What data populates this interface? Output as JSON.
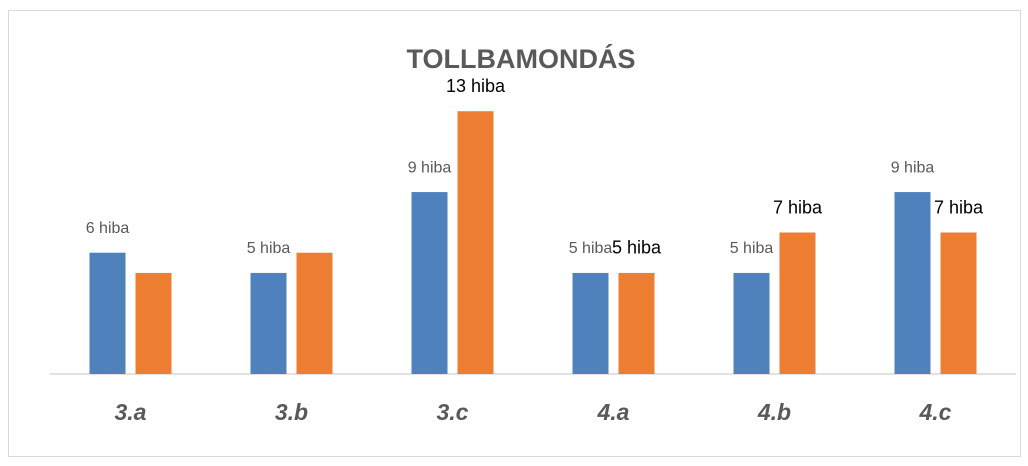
{
  "chart_data": {
    "type": "bar",
    "title": "TOLLBAMONDÁS",
    "categories": [
      "3.a",
      "3.b",
      "3.c",
      "4.a",
      "4.b",
      "4.c"
    ],
    "series": [
      {
        "color": "#4f81bd",
        "values": [
          6,
          5,
          9,
          5,
          5,
          9
        ],
        "value_labels": [
          "6 hiba",
          "5 hiba",
          "9 hiba",
          "5 hiba",
          "5 hiba",
          "9 hiba"
        ]
      },
      {
        "color": "#ed7d31",
        "values": [
          5,
          6,
          13,
          5,
          7,
          7
        ],
        "value_labels": [
          null,
          null,
          "13 hiba",
          "5 hiba",
          "7 hiba",
          "7 hiba"
        ]
      }
    ],
    "ylim": [
      0,
      14
    ]
  }
}
